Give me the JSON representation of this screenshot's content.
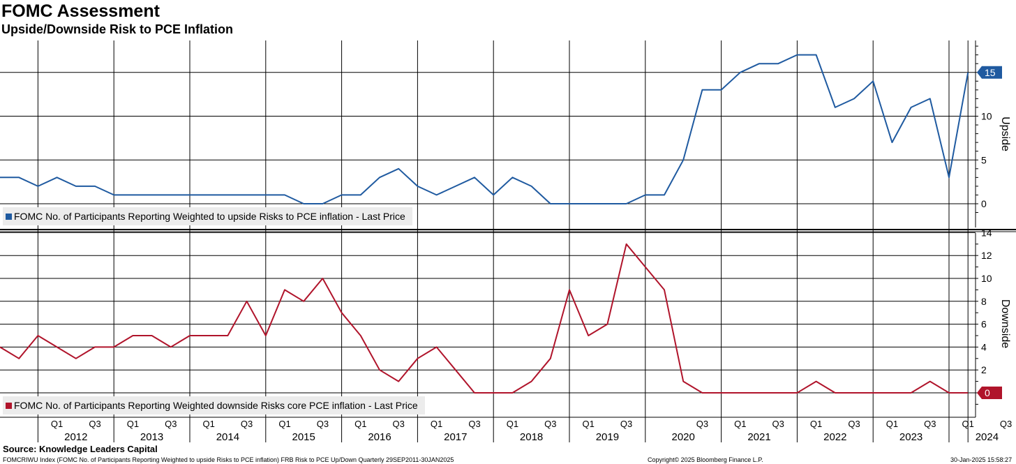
{
  "header": {
    "title": "FOMC Assessment",
    "subtitle": "Upside/Downside Risk to PCE Inflation"
  },
  "chart_data": [
    {
      "type": "line",
      "panel": "upside",
      "ylabel": "Upside",
      "ylim": [
        -1.5,
        18.5
      ],
      "yticks": [
        0,
        5,
        10,
        15
      ],
      "color": "#1f5aa0",
      "last_value_label": "15",
      "legend": "FOMC No. of Participants Reporting Weighted to upside Risks to PCE inflation - Last Price",
      "x_start": "2011 Q3",
      "values": [
        3,
        3,
        2,
        3,
        2,
        2,
        1,
        1,
        1,
        1,
        1,
        1,
        1,
        1,
        1,
        1,
        0,
        0,
        1,
        1,
        3,
        4,
        2,
        1,
        2,
        3,
        1,
        3,
        2,
        0,
        0,
        0,
        0,
        0,
        1,
        1,
        5,
        13,
        13,
        15,
        16,
        16,
        17,
        17,
        11,
        12,
        14,
        7,
        11,
        12,
        3,
        15
      ]
    },
    {
      "type": "line",
      "panel": "downside",
      "ylabel": "Downside",
      "ylim": [
        -2.5,
        14.5
      ],
      "yticks": [
        2,
        4,
        6,
        8,
        10,
        12,
        14
      ],
      "color": "#b0142b",
      "last_value_label": "0",
      "legend": "FOMC No. of Participants Reporting Weighted downside Risks core PCE inflation - Last Price",
      "x_start": "2011 Q3",
      "values": [
        4,
        3,
        5,
        4,
        3,
        4,
        4,
        5,
        5,
        4,
        5,
        5,
        5,
        8,
        5,
        9,
        8,
        10,
        7,
        5,
        2,
        1,
        3,
        4,
        2,
        0,
        0,
        0,
        1,
        3,
        9,
        5,
        6,
        13,
        11,
        9,
        1,
        0,
        0,
        0,
        0,
        0,
        0,
        1,
        0,
        0,
        0,
        0,
        0,
        1,
        0,
        0
      ]
    }
  ],
  "x_axis": {
    "quarter_labels": [
      "Q1",
      "Q3",
      "Q1",
      "Q3",
      "Q1",
      "Q3",
      "Q1",
      "Q3",
      "Q1",
      "Q3",
      "Q1",
      "Q3",
      "Q1",
      "Q3",
      "Q1",
      "Q3",
      "Q3",
      "Q1",
      "Q3",
      "Q1",
      "Q3",
      "Q1",
      "Q3",
      "Q1",
      "Q3"
    ],
    "years": [
      "2012",
      "2013",
      "2014",
      "2015",
      "2016",
      "2017",
      "2018",
      "2019",
      "2020",
      "2021",
      "2022",
      "2023",
      "2024"
    ]
  },
  "footer": {
    "source": "Source: Knowledge Leaders Capital",
    "index_desc": "FOMCRIWU Index (FOMC No. of Participants Reporting Weighted to upside Risks to PCE inflation) FRB Risk to PCE Up/Down  Quarterly 29SEP2011-30JAN2025",
    "copyright": "Copyright© 2025 Bloomberg Finance L.P.",
    "timestamp": "30-Jan-2025 15:58:27"
  }
}
